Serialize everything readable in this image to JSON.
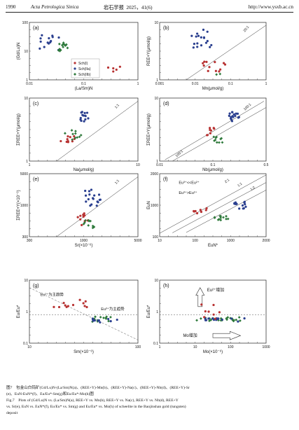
{
  "header": {
    "page_number": "1990",
    "journal": "Acta Petrologica Sinica",
    "journal_cn": "岩石学报",
    "year_volume": "2025，41(6)",
    "url": "http://www.ysxb.ac.cn"
  },
  "legend": {
    "items": [
      {
        "label": "Sch(I)",
        "color": "#b83232"
      },
      {
        "label": "Sch(IIa)",
        "color": "#2a3f8f"
      },
      {
        "label": "Sch(IIb)",
        "color": "#2f7a3c"
      }
    ]
  },
  "panels": [
    {
      "id": "a",
      "letter": "(a)",
      "xlabel": "(La/Sm)N",
      "ylabel": "(Gd/Lu)N",
      "xticks": [
        "0.01",
        "0.1",
        "1"
      ],
      "yticks": [
        "1",
        "10",
        "100"
      ]
    },
    {
      "id": "b",
      "letter": "(b)",
      "xlabel": "Mn(μmol/g)",
      "ylabel": "REE+Y(μmol/g)",
      "xticks": [
        "0.001",
        "0.01",
        "0.1",
        "1"
      ],
      "yticks": [
        "1",
        "10"
      ],
      "refline": "20:1"
    },
    {
      "id": "c",
      "letter": "(c)",
      "xlabel": "Na(μmol/g)",
      "ylabel": "ΣREE+Y(μmol/g)",
      "xticks": [
        "1",
        "10"
      ],
      "yticks": [
        "1",
        "10"
      ],
      "refline": "1:1"
    },
    {
      "id": "d",
      "letter": "(d)",
      "xlabel": "Nb(μmol/g)",
      "ylabel": "ΣREE+Y(μmol/g)",
      "xticks": [
        "0.01",
        "0.1",
        "0.5"
      ],
      "yticks": [
        "1",
        "10"
      ],
      "reflines": [
        "100:1",
        "100:1"
      ]
    },
    {
      "id": "e",
      "letter": "(e)",
      "xlabel": "Sr(×10⁻⁶)",
      "ylabel": "ΣREE+Y(×10⁻⁶)",
      "xticks": [
        "300",
        "1000",
        "5000"
      ],
      "yticks": [
        "300",
        "1000",
        "5000"
      ],
      "refline": "1:1"
    },
    {
      "id": "f",
      "letter": "(f)",
      "xlabel": "EuN*",
      "ylabel": "EuN",
      "xticks": [
        "10",
        "100",
        "1000",
        "2000"
      ],
      "yticks": [
        "100",
        "1000",
        "2000"
      ],
      "reflines": [
        "2:1",
        "1:1",
        "1:2"
      ],
      "notes": [
        "Eu³⁺<<Eu²⁺",
        "Eu³⁺>Eu²⁺"
      ]
    },
    {
      "id": "g",
      "letter": "(g)",
      "xlabel": "Sm(×10⁻⁶)",
      "ylabel": "Eu/Eu*",
      "xticks": [
        "10",
        "100"
      ],
      "yticks": [
        "0.1",
        "1",
        "10"
      ],
      "notes": [
        "Eu²⁺为主趋势",
        "Eu³⁺为主趋势"
      ]
    },
    {
      "id": "h",
      "letter": "(h)",
      "xlabel": "Mo(×10⁻⁶)",
      "ylabel": "Eu/Eu*",
      "xticks": [
        "1",
        "10",
        "100",
        "1000"
      ],
      "yticks": [
        "0.1",
        "1",
        "10"
      ],
      "notes": [
        "Eu²⁺增加",
        "Mo增加"
      ]
    }
  ],
  "caption": {
    "cn_line1": "图7　包金山白钨矿(Gd/Lu)N-(La/Sm)N(a)、(REE+Y)-Mn(b)、(REE+Y)-Na(c)、(REE+Y)-Nb(d)、(REE+Y)-Sr",
    "cn_line2": "(e)、EuN-EuN*(f)、Eu/Eu*-Sm(g)和Eu/Eu*-Mo(h)图",
    "en_line1": "Fig.7　Plots of (Gd/Lu)N vs. (La/Sm)N(a), REE+Y vs. Mn(b), REE+Y vs. Na(c), REE+Y vs. Nb(d), REE+Y",
    "en_line2": "vs. Sr(e), EuN vs. EuN*(f), Eu/Eu* vs. Sm(g) and Eu/Eu* vs. Mo(h) of scheelite in the Baojinshan gold (tungsten)",
    "en_line3": "deposit"
  }
}
